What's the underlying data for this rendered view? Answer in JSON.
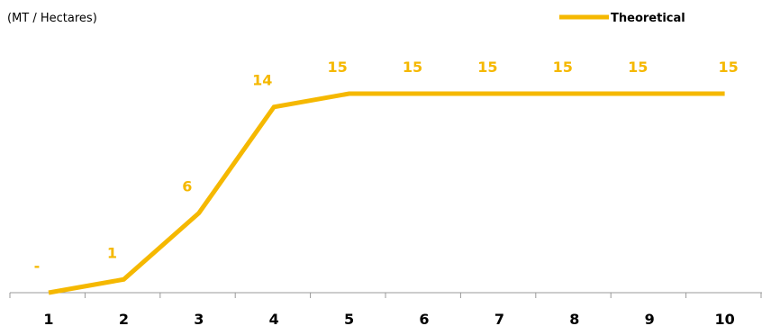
{
  "chart_data": {
    "type": "line",
    "unit_label": "(MT / Hectares)",
    "title": "",
    "xlabel": "",
    "ylabel": "",
    "categories": [
      "1",
      "2",
      "3",
      "4",
      "5",
      "6",
      "7",
      "8",
      "9",
      "10"
    ],
    "series": [
      {
        "name": "Theoretical",
        "values": [
          0,
          1,
          6,
          14,
          15,
          15,
          15,
          15,
          15,
          15
        ],
        "labels": [
          "-",
          "1",
          "6",
          "14",
          "15",
          "15",
          "15",
          "15",
          "15",
          "15"
        ],
        "color": "#F5B800"
      }
    ],
    "ylim": [
      0,
      15
    ],
    "grid": false,
    "legend": "top-right"
  }
}
